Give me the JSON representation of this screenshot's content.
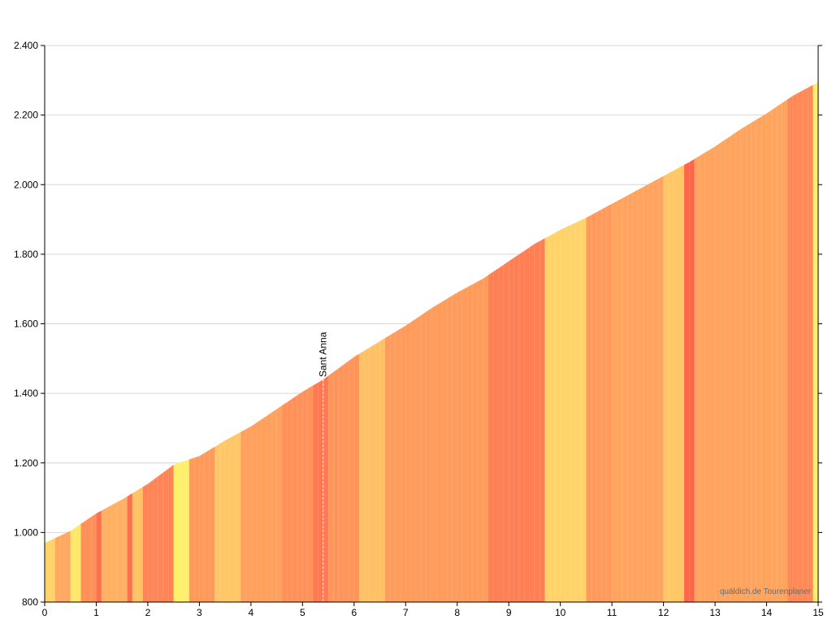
{
  "chart_data": {
    "type": "area",
    "title": "",
    "xlabel": "",
    "ylabel": "",
    "xlim": [
      0,
      15
    ],
    "ylim": [
      800,
      2400
    ],
    "grid": true,
    "x_ticks": [
      "0",
      "1",
      "2",
      "3",
      "4",
      "5",
      "6",
      "7",
      "8",
      "9",
      "10",
      "11",
      "12",
      "13",
      "14",
      "15"
    ],
    "y_ticks": [
      {
        "value": 800,
        "label": "800"
      },
      {
        "value": 1000,
        "label": "1.000"
      },
      {
        "value": 1200,
        "label": "1.200"
      },
      {
        "value": 1400,
        "label": "1.400"
      },
      {
        "value": 1600,
        "label": "1.600"
      },
      {
        "value": 1800,
        "label": "1.800"
      },
      {
        "value": 2000,
        "label": "2.000"
      },
      {
        "value": 2200,
        "label": "2.200"
      },
      {
        "value": 2400,
        "label": "2.400"
      }
    ],
    "profile": {
      "x": [
        0,
        0.5,
        1,
        1.5,
        2,
        2.5,
        3,
        3.5,
        4,
        4.5,
        5,
        5.4,
        6,
        6.5,
        7,
        7.5,
        8,
        8.5,
        9,
        9.5,
        10,
        10.5,
        11,
        11.5,
        12,
        12.5,
        13,
        13.5,
        14,
        14.5,
        15
      ],
      "elevation": [
        970,
        1005,
        1055,
        1095,
        1140,
        1195,
        1220,
        1265,
        1305,
        1355,
        1405,
        1440,
        1505,
        1550,
        1595,
        1645,
        1690,
        1730,
        1780,
        1830,
        1870,
        1905,
        1945,
        1985,
        2025,
        2065,
        2110,
        2160,
        2205,
        2255,
        2295
      ]
    },
    "segments": [
      {
        "from": 0.0,
        "to": 0.2,
        "color": "#ffd369"
      },
      {
        "from": 0.2,
        "to": 0.5,
        "color": "#ffa860"
      },
      {
        "from": 0.5,
        "to": 0.7,
        "color": "#ffe76a"
      },
      {
        "from": 0.7,
        "to": 1.0,
        "color": "#ff9158"
      },
      {
        "from": 1.0,
        "to": 1.1,
        "color": "#ff6f4c"
      },
      {
        "from": 1.1,
        "to": 1.6,
        "color": "#ffb062"
      },
      {
        "from": 1.6,
        "to": 1.7,
        "color": "#ff6f4c"
      },
      {
        "from": 1.7,
        "to": 1.9,
        "color": "#ffc366"
      },
      {
        "from": 1.9,
        "to": 2.5,
        "color": "#ff8456"
      },
      {
        "from": 2.5,
        "to": 2.8,
        "color": "#fff06b"
      },
      {
        "from": 2.8,
        "to": 3.3,
        "color": "#ff9a5b"
      },
      {
        "from": 3.3,
        "to": 3.8,
        "color": "#ffc767"
      },
      {
        "from": 3.8,
        "to": 4.6,
        "color": "#ffa05d"
      },
      {
        "from": 4.6,
        "to": 5.2,
        "color": "#ff915a"
      },
      {
        "from": 5.2,
        "to": 5.5,
        "color": "#ff7a52"
      },
      {
        "from": 5.5,
        "to": 6.1,
        "color": "#ff955b"
      },
      {
        "from": 6.1,
        "to": 6.6,
        "color": "#ffc066"
      },
      {
        "from": 6.6,
        "to": 8.6,
        "color": "#ff9c5c"
      },
      {
        "from": 8.6,
        "to": 9.7,
        "color": "#ff7f54"
      },
      {
        "from": 9.7,
        "to": 10.5,
        "color": "#ffd36a"
      },
      {
        "from": 10.5,
        "to": 11.0,
        "color": "#ff9a5b"
      },
      {
        "from": 11.0,
        "to": 12.0,
        "color": "#ffa45e"
      },
      {
        "from": 12.0,
        "to": 12.4,
        "color": "#ffc766"
      },
      {
        "from": 12.4,
        "to": 12.6,
        "color": "#ff6647"
      },
      {
        "from": 12.6,
        "to": 14.4,
        "color": "#ffa45e"
      },
      {
        "from": 14.4,
        "to": 14.9,
        "color": "#ff8a57"
      },
      {
        "from": 14.9,
        "to": 15.0,
        "color": "#ffee6b"
      }
    ],
    "annotations": [
      {
        "x": 5.4,
        "label": "Sant Anna"
      }
    ],
    "watermark": "quäldich.de Tourenplaner"
  }
}
